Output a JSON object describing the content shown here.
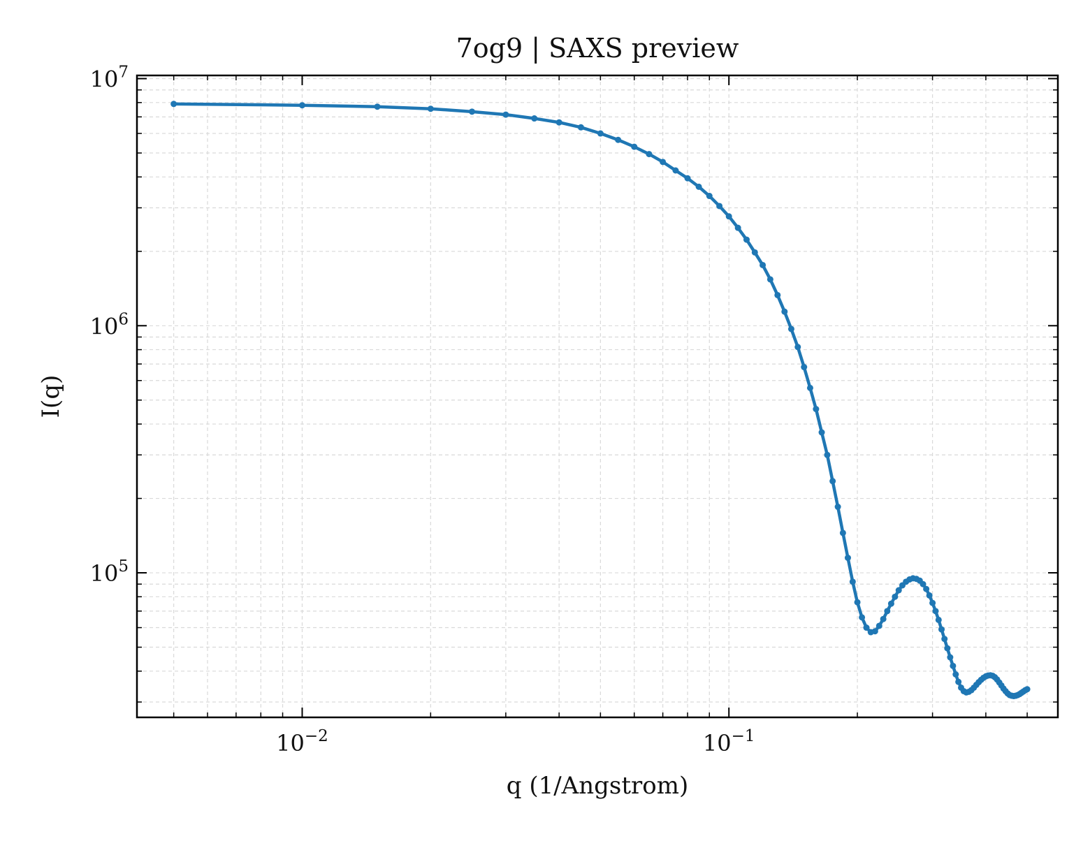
{
  "chart_data": {
    "type": "line",
    "title": "7og9 | SAXS preview",
    "xlabel": "q (1/Angstrom)",
    "ylabel": "I(q)",
    "xscale": "log",
    "yscale": "log",
    "xlim": [
      0.0041,
      0.59
    ],
    "ylim": [
      26000,
      10300000
    ],
    "grid": true,
    "x_ticks": [
      {
        "value": 0.01,
        "base": "10",
        "exp": "−2"
      },
      {
        "value": 0.1,
        "base": "10",
        "exp": "−1"
      }
    ],
    "y_ticks": [
      {
        "value": 100000,
        "base": "10",
        "exp": "5"
      },
      {
        "value": 1000000,
        "base": "10",
        "exp": "6"
      },
      {
        "value": 10000000,
        "base": "10",
        "exp": "7"
      }
    ],
    "series": [
      {
        "color": "#1f77b4",
        "x": [
          0.005,
          0.01,
          0.015,
          0.02,
          0.025,
          0.03,
          0.035,
          0.04,
          0.045,
          0.05,
          0.055,
          0.06,
          0.065,
          0.07,
          0.075,
          0.08,
          0.085,
          0.09,
          0.095,
          0.1,
          0.105,
          0.11,
          0.115,
          0.12,
          0.125,
          0.13,
          0.135,
          0.14,
          0.145,
          0.15,
          0.155,
          0.16,
          0.165,
          0.17,
          0.175,
          0.18,
          0.185,
          0.19,
          0.195,
          0.2,
          0.205,
          0.21,
          0.215,
          0.22,
          0.225,
          0.23,
          0.235,
          0.24,
          0.245,
          0.25,
          0.255,
          0.26,
          0.265,
          0.27,
          0.275,
          0.28,
          0.285,
          0.29,
          0.295,
          0.3,
          0.305,
          0.31,
          0.315,
          0.32,
          0.325,
          0.33,
          0.335,
          0.34,
          0.345,
          0.35,
          0.355,
          0.36,
          0.365,
          0.37,
          0.375,
          0.38,
          0.385,
          0.39,
          0.395,
          0.4,
          0.405,
          0.41,
          0.415,
          0.42,
          0.425,
          0.43,
          0.435,
          0.44,
          0.445,
          0.45,
          0.455,
          0.46,
          0.465,
          0.47,
          0.475,
          0.48,
          0.485,
          0.49,
          0.495,
          0.5
        ],
        "y": [
          7900000,
          7800000,
          7700000,
          7550000,
          7350000,
          7150000,
          6900000,
          6650000,
          6350000,
          6000000,
          5650000,
          5300000,
          4950000,
          4600000,
          4250000,
          3950000,
          3650000,
          3350000,
          3050000,
          2770000,
          2490000,
          2230000,
          1980000,
          1760000,
          1540000,
          1330000,
          1140000,
          970000,
          820000,
          680000,
          560000,
          460000,
          370000,
          300000,
          235000,
          185000,
          145000,
          115000,
          92000,
          76000,
          66000,
          60000,
          57500,
          58000,
          61000,
          65000,
          70000,
          75000,
          80000,
          85000,
          89000,
          92000,
          94000,
          95000,
          94500,
          93000,
          90000,
          86000,
          81000,
          75500,
          70000,
          64500,
          59000,
          54000,
          49500,
          45500,
          42000,
          38800,
          36200,
          34300,
          33200,
          32800,
          33000,
          33500,
          34300,
          35200,
          36100,
          36900,
          37600,
          38100,
          38400,
          38500,
          38300,
          37800,
          37000,
          36000,
          35000,
          34000,
          33200,
          32500,
          32000,
          31800,
          31700,
          31800,
          32000,
          32300,
          32700,
          33100,
          33500,
          33800
        ]
      }
    ]
  }
}
